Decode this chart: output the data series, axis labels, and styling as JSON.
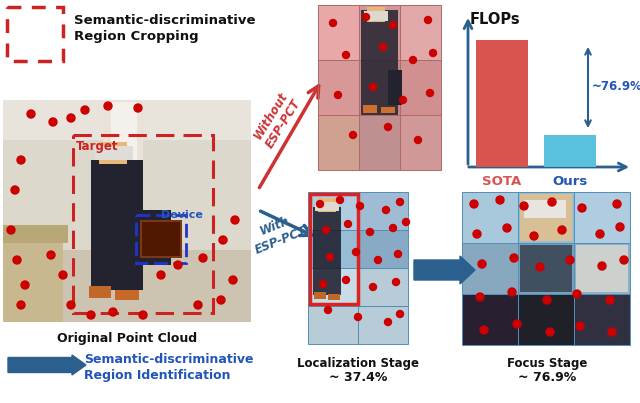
{
  "fig_width": 6.4,
  "fig_height": 4.03,
  "bg_color": "#ffffff",
  "top_left_label1": "Semantic-discriminative",
  "top_left_label2": "Region Cropping",
  "bottom_left_label1": "Semantic-discriminative",
  "bottom_left_label2": "Region Identification",
  "original_label": "Original Point Cloud",
  "without_label": "Without\nESP-PCT",
  "with_label": "With\nESP-PCT",
  "flops_label": "FLOPs",
  "sota_label": "SOTA",
  "ours_label": "Ours",
  "reduction_label": "~76.9%",
  "loc_stage_label": "Localization Stage",
  "loc_pct_label": "~ 37.4%",
  "focus_stage_label": "Focus Stage",
  "focus_pct_label": "~ 76.9%",
  "sota_bar_color": "#d9534f",
  "ours_bar_color": "#5bc0de",
  "sota_bar_height": 0.82,
  "ours_bar_height": 0.21,
  "arrow_red_color": "#cc3333",
  "arrow_blue_color": "#2b5f8e",
  "red_dot_color": "#cc0000",
  "dashed_box_red": "#cc2222",
  "dashed_box_blue": "#2233cc",
  "label_red_color": "#cc2222",
  "label_blue_color": "#2255bb",
  "label_black_color": "#111111",
  "grid_blue_light": "#b8d4e8",
  "grid_blue_dark": "#88b0cc",
  "grid_red_light": "#e8a8a8",
  "grid_red_dark": "#c88888"
}
